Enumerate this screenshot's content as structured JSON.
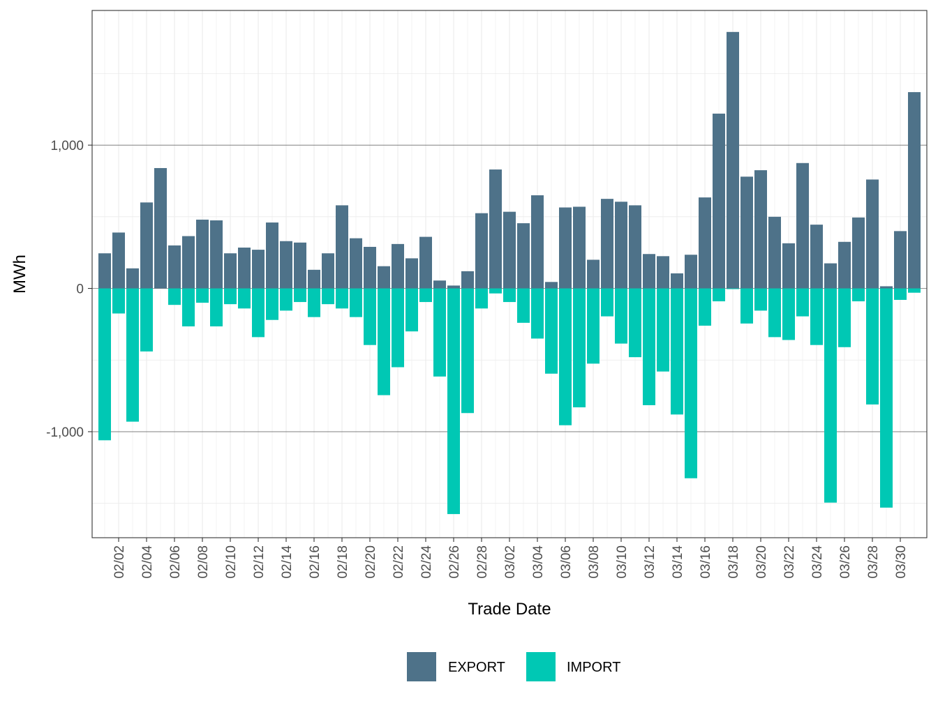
{
  "chart_data": {
    "type": "bar",
    "stacked": true,
    "xlabel": "Trade Date",
    "ylabel": "MWh",
    "ylim": [
      -1740,
      1940
    ],
    "y_ticks": [
      -1000,
      0,
      1000
    ],
    "y_tick_labels": [
      "-1,000",
      "0",
      "1,000"
    ],
    "x_tick_labels": [
      "02/02",
      "02/04",
      "02/06",
      "02/08",
      "02/10",
      "02/12",
      "02/14",
      "02/16",
      "02/18",
      "02/20",
      "02/22",
      "02/24",
      "02/26",
      "02/28",
      "03/02",
      "03/04",
      "03/06",
      "03/08",
      "03/10",
      "03/12",
      "03/14",
      "03/16",
      "03/18",
      "03/20",
      "03/22",
      "03/24",
      "03/26",
      "03/28",
      "03/30"
    ],
    "x_tick_start_index": 1,
    "x_tick_step": 2,
    "grid": true,
    "legend_position": "bottom",
    "categories": [
      "02/01",
      "02/02",
      "02/03",
      "02/04",
      "02/05",
      "02/06",
      "02/07",
      "02/08",
      "02/09",
      "02/10",
      "02/11",
      "02/12",
      "02/13",
      "02/14",
      "02/15",
      "02/16",
      "02/17",
      "02/18",
      "02/19",
      "02/20",
      "02/21",
      "02/22",
      "02/23",
      "02/24",
      "02/25",
      "02/26",
      "02/27",
      "02/28",
      "03/01",
      "03/02",
      "03/03",
      "03/04",
      "03/05",
      "03/06",
      "03/07",
      "03/08",
      "03/09",
      "03/10",
      "03/11",
      "03/12",
      "03/13",
      "03/14",
      "03/15",
      "03/16",
      "03/17",
      "03/18",
      "03/19",
      "03/20",
      "03/21",
      "03/22",
      "03/23",
      "03/24",
      "03/25",
      "03/26",
      "03/27",
      "03/28",
      "03/29",
      "03/30",
      "03/31"
    ],
    "series": [
      {
        "name": "EXPORT",
        "color": "#4e7289",
        "values": [
          245,
          390,
          140,
          600,
          840,
          300,
          365,
          480,
          475,
          245,
          285,
          270,
          460,
          330,
          320,
          130,
          245,
          580,
          350,
          290,
          155,
          310,
          210,
          360,
          55,
          20,
          120,
          525,
          830,
          535,
          455,
          650,
          45,
          565,
          570,
          200,
          625,
          605,
          580,
          240,
          225,
          105,
          235,
          635,
          1220,
          1790,
          780,
          825,
          500,
          315,
          875,
          445,
          175,
          325,
          495,
          760,
          15,
          400,
          1370
        ]
      },
      {
        "name": "IMPORT",
        "color": "#00c8b4",
        "values": [
          -1060,
          -175,
          -930,
          -440,
          0,
          -115,
          -265,
          -100,
          -265,
          -110,
          -140,
          -340,
          -220,
          -155,
          -95,
          -200,
          -110,
          -140,
          -200,
          -395,
          -745,
          -550,
          -300,
          -95,
          -615,
          -1575,
          -870,
          -140,
          -35,
          -95,
          -240,
          -350,
          -595,
          -955,
          -830,
          -525,
          -195,
          -385,
          -480,
          -815,
          -580,
          -880,
          -1325,
          -260,
          -90,
          -5,
          -245,
          -155,
          -340,
          -360,
          -195,
          -395,
          -1495,
          -410,
          -90,
          -810,
          -1530,
          -80,
          -30
        ]
      }
    ]
  }
}
